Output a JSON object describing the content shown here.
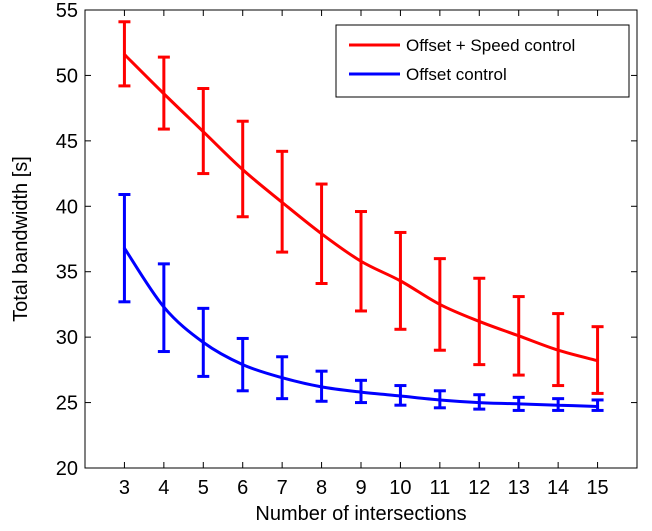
{
  "chart_data": {
    "type": "line",
    "title": "",
    "xlabel": "Number of intersections",
    "ylabel": "Total bandwidth [s]",
    "x": [
      3,
      4,
      5,
      6,
      7,
      8,
      9,
      10,
      11,
      12,
      13,
      14,
      15
    ],
    "xlim": [
      2,
      16
    ],
    "ylim": [
      20,
      55
    ],
    "xticks": [
      3,
      4,
      5,
      6,
      7,
      8,
      9,
      10,
      11,
      12,
      13,
      14,
      15
    ],
    "yticks": [
      20,
      25,
      30,
      35,
      40,
      45,
      50,
      55
    ],
    "grid": false,
    "legend_position": "top-right",
    "series": [
      {
        "name": "Offset + Speed control",
        "color": "#ff0000",
        "values": [
          51.6,
          48.6,
          45.7,
          42.8,
          40.3,
          37.9,
          35.8,
          34.3,
          32.5,
          31.2,
          30.1,
          29.0,
          28.2
        ],
        "err_low": [
          49.2,
          45.9,
          42.5,
          39.2,
          36.5,
          34.1,
          32.0,
          30.6,
          29.0,
          27.9,
          27.1,
          26.3,
          25.7
        ],
        "err_high": [
          54.1,
          51.4,
          49.0,
          46.5,
          44.2,
          41.7,
          39.6,
          38.0,
          36.0,
          34.5,
          33.1,
          31.8,
          30.8
        ]
      },
      {
        "name": "Offset control",
        "color": "#0000ff",
        "values": [
          36.8,
          32.3,
          29.6,
          27.9,
          26.9,
          26.2,
          25.8,
          25.5,
          25.2,
          25.0,
          24.9,
          24.8,
          24.7
        ],
        "err_low": [
          32.7,
          28.9,
          27.0,
          25.9,
          25.3,
          25.1,
          25.0,
          24.8,
          24.6,
          24.5,
          24.4,
          24.4,
          24.4
        ],
        "err_high": [
          40.9,
          35.6,
          32.2,
          29.9,
          28.5,
          27.4,
          26.7,
          26.3,
          25.9,
          25.6,
          25.4,
          25.3,
          25.2
        ]
      }
    ]
  }
}
